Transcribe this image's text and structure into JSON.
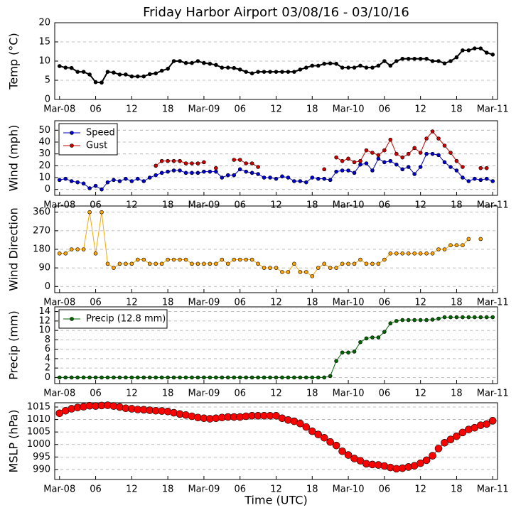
{
  "chart_data": [
    {
      "type": "line",
      "title": "Friday Harbor Airport 03/08/16 - 03/10/16",
      "ylabel": "Temp (°C)",
      "x": [
        0,
        1,
        2,
        3,
        4,
        5,
        6,
        7,
        8,
        9,
        10,
        11,
        12,
        13,
        14,
        15,
        16,
        17,
        18,
        19,
        20,
        21,
        22,
        23,
        24,
        25,
        26,
        27,
        28,
        29,
        30,
        31,
        32,
        33,
        34,
        35,
        36,
        37,
        38,
        39,
        40,
        41,
        42,
        43,
        44,
        45,
        46,
        47,
        48,
        49,
        50,
        51,
        52,
        53,
        54,
        55,
        56,
        57,
        58,
        59,
        60,
        61,
        62,
        63,
        64,
        65,
        66,
        67,
        68,
        69,
        70,
        71,
        72
      ],
      "series": [
        {
          "color": "#000000",
          "values": [
            8.7,
            8.3,
            8.2,
            7.2,
            7.2,
            6.5,
            4.5,
            4.4,
            7.2,
            7.0,
            6.5,
            6.5,
            6.0,
            6.0,
            6.0,
            6.6,
            6.8,
            7.5,
            8.0,
            10.0,
            10.0,
            9.5,
            9.5,
            10.0,
            9.5,
            9.3,
            9.0,
            8.3,
            8.3,
            8.2,
            7.8,
            7.2,
            6.8,
            7.2,
            7.2,
            7.2,
            7.2,
            7.2,
            7.2,
            7.2,
            7.8,
            8.3,
            8.8,
            8.8,
            9.3,
            9.4,
            9.3,
            8.3,
            8.3,
            8.3,
            8.8,
            8.3,
            8.3,
            8.8,
            10.0,
            8.8,
            10.0,
            10.6,
            10.6,
            10.6,
            10.6,
            10.6,
            10.0,
            10.0,
            9.4,
            10.0,
            11.0,
            12.8,
            12.8,
            13.3,
            13.3,
            12.2,
            11.7
          ]
        }
      ],
      "xlim": [
        -0.8,
        72.8
      ],
      "ylim": [
        0,
        20
      ],
      "yticks": [
        0,
        5,
        10,
        15,
        20
      ],
      "xticks": [
        {
          "value": 0,
          "label": "Mar-08"
        },
        {
          "value": 6,
          "label": "06"
        },
        {
          "value": 12,
          "label": "12"
        },
        {
          "value": 18,
          "label": "18"
        },
        {
          "value": 24,
          "label": "Mar-09"
        },
        {
          "value": 30,
          "label": "06"
        },
        {
          "value": 36,
          "label": "12"
        },
        {
          "value": 42,
          "label": "18"
        },
        {
          "value": 48,
          "label": "Mar-10"
        },
        {
          "value": 54,
          "label": "06"
        },
        {
          "value": 60,
          "label": "12"
        },
        {
          "value": 66,
          "label": "18"
        },
        {
          "value": 72,
          "label": "Mar-11"
        }
      ],
      "grid": true
    },
    {
      "type": "line",
      "ylabel": "Wind (mph)",
      "legend": "upper left",
      "x": [
        0,
        1,
        2,
        3,
        4,
        5,
        6,
        7,
        8,
        9,
        10,
        11,
        12,
        13,
        14,
        15,
        16,
        17,
        18,
        19,
        20,
        21,
        22,
        23,
        24,
        25,
        26,
        27,
        28,
        29,
        30,
        31,
        32,
        33,
        34,
        35,
        36,
        37,
        38,
        39,
        40,
        41,
        42,
        43,
        44,
        45,
        46,
        47,
        48,
        49,
        50,
        51,
        52,
        53,
        54,
        55,
        56,
        57,
        58,
        59,
        60,
        61,
        62,
        63,
        64,
        65,
        66,
        67,
        68,
        69,
        70,
        71,
        72
      ],
      "series": [
        {
          "name": "Speed",
          "color": "#0000cc",
          "values": [
            8,
            9,
            7,
            6,
            5,
            1,
            3,
            0,
            6,
            8,
            7,
            9,
            7,
            9,
            7,
            10,
            12,
            14,
            15,
            16,
            16,
            14,
            14,
            14,
            15,
            15,
            15,
            10,
            12,
            12,
            17,
            15,
            14,
            13,
            10,
            10,
            9,
            11,
            10,
            7,
            7,
            6,
            10,
            9,
            9,
            8,
            15,
            16,
            16,
            14,
            21,
            22,
            16,
            26,
            23,
            24,
            21,
            17,
            19,
            13,
            19,
            30,
            30,
            29,
            23,
            19,
            16,
            10,
            7,
            9,
            8,
            9,
            7
          ]
        },
        {
          "name": "Gust",
          "color": "#cc0000",
          "values": [
            null,
            null,
            null,
            null,
            null,
            null,
            null,
            null,
            null,
            null,
            null,
            null,
            null,
            null,
            null,
            null,
            20,
            24,
            24,
            24,
            24,
            22,
            22,
            22,
            23,
            null,
            18,
            null,
            null,
            25,
            25,
            22,
            22,
            19,
            null,
            null,
            null,
            null,
            null,
            null,
            null,
            null,
            null,
            null,
            17,
            null,
            27,
            24,
            26,
            23,
            24,
            33,
            31,
            29,
            33,
            42,
            30,
            27,
            30,
            35,
            31,
            43,
            49,
            43,
            37,
            31,
            24,
            19,
            null,
            null,
            18,
            18,
            null
          ]
        }
      ],
      "xlim": [
        -0.8,
        72.8
      ],
      "ylim": [
        -5,
        58
      ],
      "yticks": [
        0,
        10,
        20,
        30,
        40,
        50
      ],
      "xticks": [
        {
          "value": 0,
          "label": "Mar-08"
        },
        {
          "value": 6,
          "label": "06"
        },
        {
          "value": 12,
          "label": "12"
        },
        {
          "value": 18,
          "label": "18"
        },
        {
          "value": 24,
          "label": "Mar-09"
        },
        {
          "value": 30,
          "label": "06"
        },
        {
          "value": 36,
          "label": "12"
        },
        {
          "value": 42,
          "label": "18"
        },
        {
          "value": 48,
          "label": "Mar-10"
        },
        {
          "value": 54,
          "label": "06"
        },
        {
          "value": 60,
          "label": "12"
        },
        {
          "value": 66,
          "label": "18"
        },
        {
          "value": 72,
          "label": "Mar-11"
        }
      ],
      "grid": true
    },
    {
      "type": "line",
      "ylabel": "Wind Direction",
      "x": [
        0,
        1,
        2,
        3,
        4,
        5,
        6,
        7,
        8,
        9,
        10,
        11,
        12,
        13,
        14,
        15,
        16,
        17,
        18,
        19,
        20,
        21,
        22,
        23,
        24,
        25,
        26,
        27,
        28,
        29,
        30,
        31,
        32,
        33,
        34,
        35,
        36,
        37,
        38,
        39,
        40,
        41,
        42,
        43,
        44,
        45,
        46,
        47,
        48,
        49,
        50,
        51,
        52,
        53,
        54,
        55,
        56,
        57,
        58,
        59,
        60,
        61,
        62,
        63,
        64,
        65,
        66,
        67,
        68,
        69,
        70,
        71,
        72
      ],
      "series": [
        {
          "color": "#ffa500",
          "values": [
            160,
            160,
            180,
            180,
            180,
            360,
            160,
            360,
            110,
            90,
            110,
            110,
            110,
            130,
            130,
            110,
            110,
            110,
            130,
            130,
            130,
            130,
            110,
            110,
            110,
            110,
            110,
            130,
            110,
            130,
            130,
            130,
            130,
            110,
            90,
            90,
            90,
            70,
            70,
            110,
            70,
            70,
            50,
            90,
            110,
            90,
            90,
            110,
            110,
            110,
            130,
            110,
            110,
            110,
            130,
            160,
            160,
            160,
            160,
            160,
            160,
            160,
            160,
            180,
            180,
            200,
            200,
            200,
            230,
            null,
            230,
            null,
            null
          ]
        }
      ],
      "xlim": [
        -0.8,
        72.8
      ],
      "ylim": [
        -30,
        390
      ],
      "yticks": [
        0,
        90,
        180,
        270,
        360
      ],
      "xticks": [
        {
          "value": 0,
          "label": "Mar-08"
        },
        {
          "value": 6,
          "label": "06"
        },
        {
          "value": 12,
          "label": "12"
        },
        {
          "value": 18,
          "label": "18"
        },
        {
          "value": 24,
          "label": "Mar-09"
        },
        {
          "value": 30,
          "label": "06"
        },
        {
          "value": 36,
          "label": "12"
        },
        {
          "value": 42,
          "label": "18"
        },
        {
          "value": 48,
          "label": "Mar-10"
        },
        {
          "value": 54,
          "label": "06"
        },
        {
          "value": 60,
          "label": "12"
        },
        {
          "value": 66,
          "label": "18"
        },
        {
          "value": 72,
          "label": "Mar-11"
        }
      ],
      "grid": true
    },
    {
      "type": "line",
      "ylabel": "Precip (mm)",
      "legend": "upper left",
      "x": [
        0,
        1,
        2,
        3,
        4,
        5,
        6,
        7,
        8,
        9,
        10,
        11,
        12,
        13,
        14,
        15,
        16,
        17,
        18,
        19,
        20,
        21,
        22,
        23,
        24,
        25,
        26,
        27,
        28,
        29,
        30,
        31,
        32,
        33,
        34,
        35,
        36,
        37,
        38,
        39,
        40,
        41,
        42,
        43,
        44,
        45,
        46,
        47,
        48,
        49,
        50,
        51,
        52,
        53,
        54,
        55,
        56,
        57,
        58,
        59,
        60,
        61,
        62,
        63,
        64,
        65,
        66,
        67,
        68,
        69,
        70,
        71,
        72
      ],
      "series": [
        {
          "name": "Precip (12.8 mm)",
          "color": "#006600",
          "values": [
            0,
            0,
            0,
            0,
            0,
            0,
            0,
            0,
            0,
            0,
            0,
            0,
            0,
            0,
            0,
            0,
            0,
            0,
            0,
            0,
            0,
            0,
            0,
            0,
            0,
            0,
            0,
            0,
            0,
            0,
            0,
            0,
            0,
            0,
            0,
            0,
            0,
            0,
            0,
            0,
            0,
            0,
            0,
            0,
            0,
            0.3,
            3.5,
            5.3,
            5.3,
            5.5,
            7.5,
            8.3,
            8.5,
            8.5,
            9.7,
            11.5,
            12,
            12.2,
            12.2,
            12.2,
            12.2,
            12.2,
            12.3,
            12.5,
            12.8,
            12.8,
            12.8,
            12.8,
            12.8,
            12.8,
            12.8,
            12.8,
            12.8
          ]
        }
      ],
      "xlim": [
        -0.8,
        72.8
      ],
      "ylim": [
        -1.3,
        15
      ],
      "yticks": [
        0,
        2,
        4,
        6,
        8,
        10,
        12,
        14
      ],
      "xticks": [
        {
          "value": 0,
          "label": "Mar-08"
        },
        {
          "value": 6,
          "label": "06"
        },
        {
          "value": 12,
          "label": "12"
        },
        {
          "value": 18,
          "label": "18"
        },
        {
          "value": 24,
          "label": "Mar-09"
        },
        {
          "value": 30,
          "label": "06"
        },
        {
          "value": 36,
          "label": "12"
        },
        {
          "value": 42,
          "label": "18"
        },
        {
          "value": 48,
          "label": "Mar-10"
        },
        {
          "value": 54,
          "label": "06"
        },
        {
          "value": 60,
          "label": "12"
        },
        {
          "value": 66,
          "label": "18"
        },
        {
          "value": 72,
          "label": "Mar-11"
        }
      ],
      "grid": true
    },
    {
      "type": "line",
      "ylabel": "MSLP (hPa)",
      "xlabel": "Time (UTC)",
      "x": [
        0,
        1,
        2,
        3,
        4,
        5,
        6,
        7,
        8,
        9,
        10,
        11,
        12,
        13,
        14,
        15,
        16,
        17,
        18,
        19,
        20,
        21,
        22,
        23,
        24,
        25,
        26,
        27,
        28,
        29,
        30,
        31,
        32,
        33,
        34,
        35,
        36,
        37,
        38,
        39,
        40,
        41,
        42,
        43,
        44,
        45,
        46,
        47,
        48,
        49,
        50,
        51,
        52,
        53,
        54,
        55,
        56,
        57,
        58,
        59,
        60,
        61,
        62,
        63,
        64,
        65,
        66,
        67,
        68,
        69,
        70,
        71,
        72
      ],
      "series": [
        {
          "color": "#ff0000",
          "values": [
            1012.5,
            1013.5,
            1014.3,
            1014.8,
            1015.1,
            1015.5,
            1015.4,
            1015.6,
            1015.7,
            1015.4,
            1015,
            1014.5,
            1014.3,
            1014,
            1013.9,
            1013.7,
            1013.5,
            1013.4,
            1013.2,
            1012.7,
            1012.2,
            1011.8,
            1011.3,
            1010.8,
            1010.5,
            1010.3,
            1010.5,
            1010.8,
            1011,
            1011,
            1011,
            1011.3,
            1011.5,
            1011.5,
            1011.5,
            1011.5,
            1011.5,
            1010.5,
            1009.8,
            1009.3,
            1008.4,
            1007,
            1005.3,
            1004,
            1002.7,
            1001,
            999.6,
            997.3,
            995.8,
            994.4,
            993.5,
            992.3,
            992,
            991.8,
            991.4,
            990.8,
            990.3,
            990.5,
            991,
            991.5,
            992.5,
            993.7,
            995.5,
            998.4,
            1000.7,
            1002,
            1003.3,
            1004.8,
            1006,
            1006.7,
            1007.7,
            1008.2,
            1009.5
          ]
        }
      ],
      "xlim": [
        -0.8,
        72.8
      ],
      "ylim": [
        986,
        1016.7
      ],
      "yticks": [
        990,
        995,
        1000,
        1005,
        1010,
        1015
      ],
      "xticks": [
        {
          "value": 0,
          "label": "Mar-08"
        },
        {
          "value": 6,
          "label": "06"
        },
        {
          "value": 12,
          "label": "12"
        },
        {
          "value": 18,
          "label": "18"
        },
        {
          "value": 24,
          "label": "Mar-09"
        },
        {
          "value": 30,
          "label": "06"
        },
        {
          "value": 36,
          "label": "12"
        },
        {
          "value": 42,
          "label": "18"
        },
        {
          "value": 48,
          "label": "Mar-10"
        },
        {
          "value": 54,
          "label": "06"
        },
        {
          "value": 60,
          "label": "12"
        },
        {
          "value": 66,
          "label": "18"
        },
        {
          "value": 72,
          "label": "Mar-11"
        }
      ],
      "grid": true
    }
  ]
}
